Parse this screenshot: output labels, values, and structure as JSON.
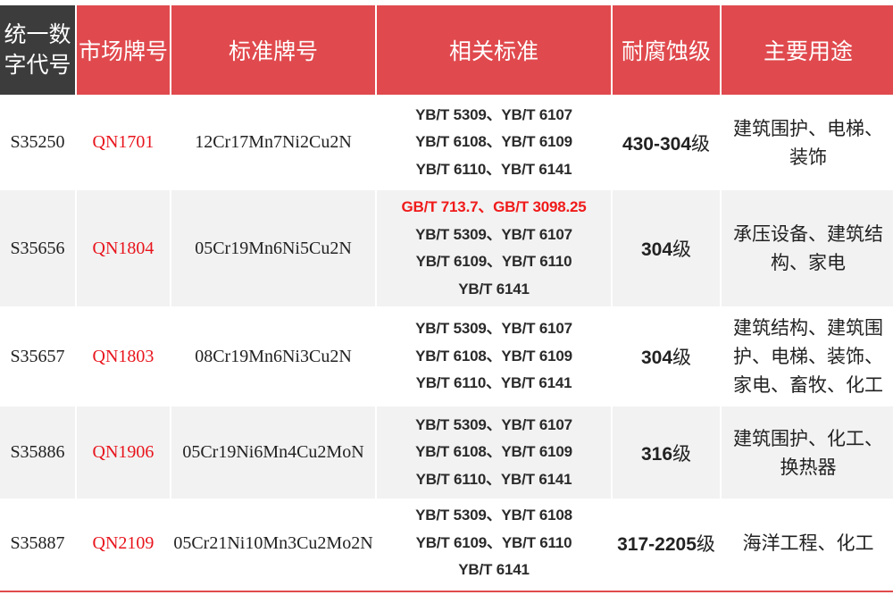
{
  "header": [
    "统一数字代号",
    "市场牌号",
    "标准牌号",
    "相关标准",
    "耐腐蚀级",
    "主要用途"
  ],
  "colors": {
    "header_red": "#e04a4e",
    "header_dark": "#3c3c3c",
    "market_red": "#e8141c",
    "row_alt": "#f2f2f2"
  },
  "rows": [
    {
      "code": "S35250",
      "market": "QN1701",
      "grade": "12Cr17Mn7Ni2Cu2N",
      "standards_red": "",
      "standards": [
        "YB/T 5309、YB/T 6107",
        "YB/T 6108、YB/T 6109",
        "YB/T 6110、YB/T 6141"
      ],
      "corrosion": "430-304",
      "corrosion_suffix": "级",
      "use": "建筑围护、电梯、装饰"
    },
    {
      "code": "S35656",
      "market": "QN1804",
      "grade": "05Cr19Mn6Ni5Cu2N",
      "standards_red": "GB/T 713.7、GB/T 3098.25",
      "standards": [
        "YB/T 5309、YB/T 6107",
        "YB/T 6109、YB/T 6110",
        "YB/T 6141"
      ],
      "corrosion": "304",
      "corrosion_suffix": "级",
      "use": "承压设备、建筑结构、家电"
    },
    {
      "code": "S35657",
      "market": "QN1803",
      "grade": "08Cr19Mn6Ni3Cu2N",
      "standards_red": "",
      "standards": [
        "YB/T 5309、YB/T 6107",
        "YB/T 6108、YB/T 6109",
        "YB/T 6110、YB/T 6141"
      ],
      "corrosion": "304",
      "corrosion_suffix": "级",
      "use": "建筑结构、建筑围护、电梯、装饰、家电、畜牧、化工"
    },
    {
      "code": "S35886",
      "market": "QN1906",
      "grade": "05Cr19Ni6Mn4Cu2MoN",
      "standards_red": "",
      "standards": [
        "YB/T 5309、YB/T 6107",
        "YB/T 6108、YB/T 6109",
        "YB/T 6110、YB/T 6141"
      ],
      "corrosion": "316",
      "corrosion_suffix": "级",
      "use": "建筑围护、化工、换热器"
    },
    {
      "code": "S35887",
      "market": "QN2109",
      "grade": "05Cr21Ni10Mn3Cu2Mo2N",
      "standards_red": "",
      "standards": [
        "YB/T 5309、YB/T 6108",
        "YB/T 6109、YB/T 6110",
        "YB/T 6141"
      ],
      "corrosion": "317-2205",
      "corrosion_suffix": "级",
      "use": "海洋工程、化工"
    }
  ]
}
